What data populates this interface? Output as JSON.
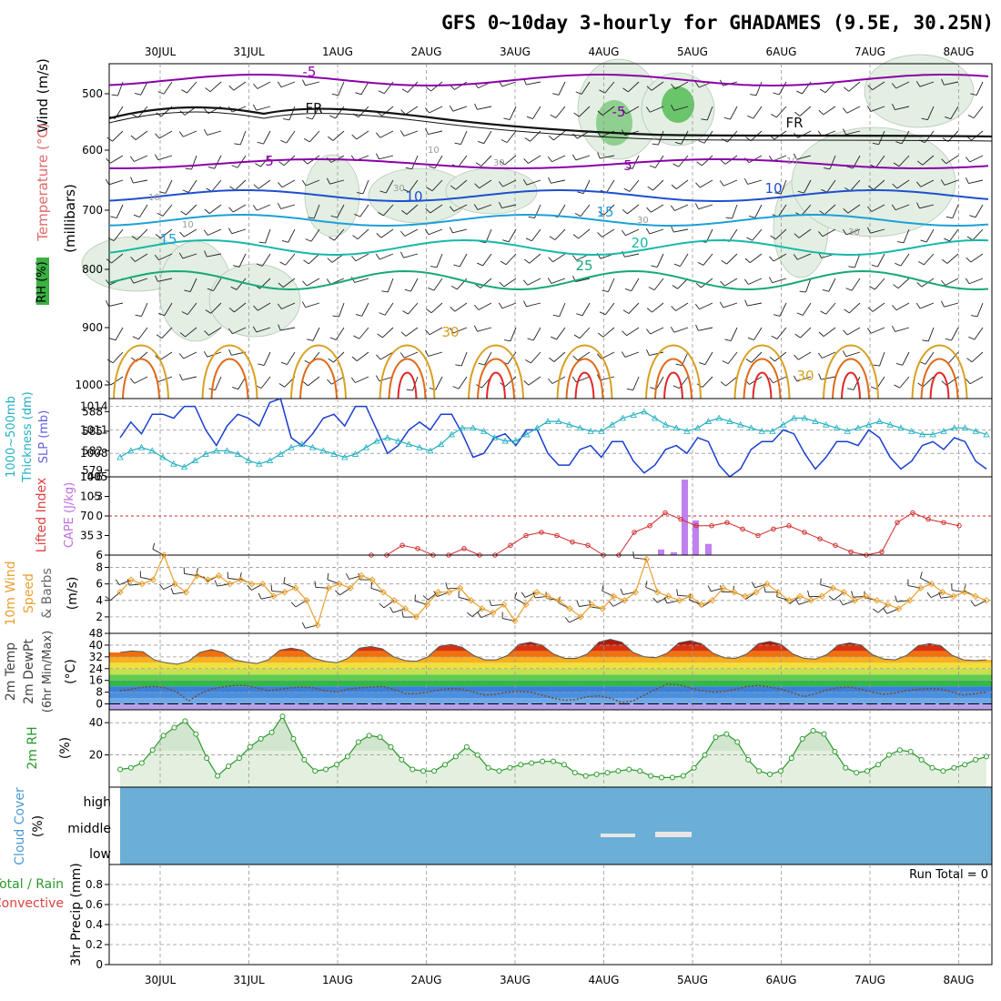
{
  "title": "GFS 0~10day 3-hourly for GHADAMES (9.5E, 30.25N)",
  "date_labels": [
    "30JUL",
    "31JUL",
    "1AUG",
    "2AUG",
    "3AUG",
    "4AUG",
    "5AUG",
    "6AUG",
    "7AUG",
    "8AUG"
  ],
  "colors": {
    "rh_green": "#3cb043",
    "temp_purple": "#8b00a8",
    "temp_blue": "#1f4fd0",
    "temp_cyan": "#1ea0d8",
    "temp_teal": "#17b8a8",
    "temp_green": "#16a878",
    "temp_gold": "#d8a020",
    "temp_orange": "#e06a18",
    "temp_red": "#e02828",
    "slp_blue": "#1a3fd0",
    "thick_cyan": "#22b0c0",
    "li_red": "#d02828",
    "cape_purple": "#c080f0",
    "wind_orange": "#e8a030",
    "cloud_blue": "#6baed6",
    "rh2m_green": "#2a9a2a"
  },
  "panels": {
    "upper": {
      "ylabel_wind": "Wind (m/s)",
      "ylabel_temp": "Temperature (°C)",
      "ylabel_rh": "RH (%)",
      "ylabel_units": "(millibars)",
      "yticks": [
        "500",
        "600",
        "700",
        "800",
        "900",
        "1000"
      ],
      "contour_labels": [
        "-5",
        "-5",
        "5",
        "5",
        "10",
        "10",
        "15",
        "15",
        "20",
        "25",
        "30",
        "30",
        "FR",
        "FR"
      ],
      "rh_labels": [
        "10",
        "10",
        "30",
        "30",
        "30",
        "30",
        "10",
        "10"
      ]
    },
    "slp": {
      "ylabel_thick": "Thickness (dm)",
      "ylabel_thick_top": "1000~500mb",
      "ylabel_slp": "SLP (mb)",
      "left_ticks": [
        "588",
        "585",
        "582",
        "579"
      ],
      "right_ticks": [
        "1014",
        "1011",
        "1008",
        "1005"
      ]
    },
    "cape": {
      "ylabel_li": "Lifted Index",
      "ylabel_cape": "CAPE (J/kg)",
      "li_ticks": [
        "-6",
        "-3",
        "0",
        "3",
        "6"
      ],
      "cape_ticks": [
        "140",
        "105",
        "70",
        "35"
      ]
    },
    "wind10": {
      "ylabel_a": "10m Wind",
      "ylabel_b": "Speed",
      "ylabel_c": "& Barbs",
      "ylabel_units": "(m/s)",
      "yticks": [
        "8",
        "6",
        "4",
        "2"
      ]
    },
    "temp2m": {
      "ylabel_a": "2m Temp",
      "ylabel_b": "2m DewPt",
      "ylabel_c": "(6hr Min/Max)",
      "ylabel_units": "(°C)",
      "yticks": [
        "48",
        "40",
        "32",
        "24",
        "16",
        "8",
        "0"
      ]
    },
    "rh2m": {
      "ylabel": "2m RH",
      "ylabel_units": "(%)",
      "yticks": [
        "40",
        "20"
      ]
    },
    "cloud": {
      "ylabel": "Cloud Cover",
      "ylabel_units": "(%)",
      "levels": [
        "high",
        "middle",
        "low"
      ]
    },
    "precip": {
      "ylabel_total": "Total / Rain",
      "ylabel_conv": "Convective",
      "ylabel_units": "3hr Precip (mm)",
      "run_total": "Run Total = 0",
      "yticks": [
        "0.8",
        "0.6",
        "0.4",
        "0.2",
        "0"
      ]
    }
  },
  "chart_data": [
    {
      "type": "line",
      "title": "",
      "xlabel": "",
      "ylabel": "SLP (mb)",
      "series": [
        {
          "name": "SLP (mb)",
          "values": [
            1010.0,
            1012.0,
            1010.5,
            1013.0,
            1013.0,
            1012.5,
            1014.0,
            1014.0,
            1011.0,
            1009.0,
            1011.5,
            1013.0,
            1012.5,
            1011.5,
            1014.5,
            1015.0,
            1010.0,
            1009.0,
            1010.5,
            1012.5,
            1013.0,
            1011.5,
            1014.0,
            1014.0,
            1011.0,
            1008.0,
            1009.0,
            1011.0,
            1012.0,
            1011.0,
            1013.0,
            1013.0,
            1010.5,
            1007.5,
            1008.0,
            1010.0,
            1010.5,
            1009.0,
            1011.0,
            1011.0,
            1008.0,
            1006.5,
            1006.5,
            1008.5,
            1009.0,
            1007.5,
            1009.5,
            1009.5,
            1007.0,
            1005.5,
            1006.5,
            1008.5,
            1009.0,
            1008.0,
            1010.0,
            1009.5,
            1006.5,
            1005.0,
            1006.0,
            1008.5,
            1009.5,
            1009.5,
            1011.0,
            1010.5,
            1008.0,
            1006.0,
            1007.5,
            1009.5,
            1009.5,
            1009.0,
            1011.0,
            1010.0,
            1007.5,
            1006.0,
            1007.0,
            1009.0,
            1009.5,
            1008.5,
            1010.0,
            1009.5,
            1007.0,
            1006.0
          ]
        },
        {
          "name": "Thickness (dm)",
          "values": [
            581.0,
            582.0,
            582.5,
            582.0,
            581.0,
            580.0,
            579.5,
            580.5,
            581.5,
            582.0,
            582.0,
            581.5,
            580.5,
            580.0,
            580.5,
            581.5,
            582.5,
            583.0,
            582.5,
            582.0,
            581.5,
            581.0,
            581.5,
            582.5,
            583.5,
            584.0,
            583.5,
            583.0,
            582.5,
            582.0,
            583.0,
            584.5,
            585.5,
            585.5,
            585.0,
            584.0,
            583.5,
            583.5,
            584.5,
            585.5,
            586.5,
            586.5,
            586.0,
            585.5,
            585.0,
            585.0,
            586.0,
            587.0,
            587.5,
            588.0,
            587.0,
            586.0,
            585.5,
            585.0,
            585.5,
            586.5,
            587.0,
            586.5,
            586.0,
            585.5,
            585.0,
            585.0,
            586.0,
            587.0,
            587.0,
            586.5,
            586.0,
            585.5,
            585.0,
            585.5,
            586.0,
            586.5,
            586.0,
            585.5,
            585.0,
            584.5,
            584.5,
            585.0,
            585.5,
            585.5,
            585.0,
            584.5
          ]
        }
      ],
      "y2label": "Thickness (dm)",
      "ylim": [
        1005,
        1015
      ],
      "y2lim": [
        578,
        590
      ]
    },
    {
      "type": "bar",
      "title": "",
      "ylabel": "CAPE (J/kg)",
      "categories": [
        "4AUG 15Z",
        "4AUG 18Z",
        "4AUG 21Z",
        "5AUG 00Z",
        "5AUG 03Z"
      ],
      "values": [
        10,
        5,
        135,
        62,
        20
      ],
      "ylim": [
        0,
        140
      ],
      "series_line": {
        "name": "Lifted Index",
        "values": [
          6,
          6,
          4.5,
          5.0,
          6,
          6,
          5.0,
          6,
          6,
          4.5,
          3.0,
          2.5,
          3.0,
          4.0,
          4.5,
          6,
          6,
          2.5,
          1.5,
          -0.5,
          0.5,
          1.5,
          1.5,
          1.0,
          2.0,
          3.0,
          2.0,
          1.5,
          2.5,
          3.5,
          4.5,
          5.5,
          6,
          5.5,
          1.0,
          -0.5,
          0.5,
          1.0,
          1.5
        ]
      }
    },
    {
      "type": "line",
      "title": "",
      "ylabel": "Speed (m/s)",
      "series": [
        {
          "name": "10m Wind Speed",
          "values": [
            5.0,
            6.5,
            6.0,
            6.5,
            9.5,
            6.0,
            5.0,
            7.0,
            6.5,
            7.0,
            6.0,
            6.5,
            6.0,
            6.0,
            4.5,
            5.0,
            5.5,
            4.0,
            1.0,
            5.5,
            6.0,
            5.5,
            7.0,
            6.5,
            5.0,
            4.0,
            3.0,
            2.0,
            3.5,
            5.0,
            5.0,
            5.5,
            4.0,
            3.0,
            2.5,
            3.5,
            1.5,
            3.5,
            5.0,
            4.5,
            4.0,
            3.0,
            2.0,
            3.5,
            3.0,
            4.5,
            4.0,
            5.0,
            9.0,
            5.0,
            4.5,
            4.0,
            4.5,
            3.5,
            4.0,
            5.5,
            5.0,
            4.5,
            5.0,
            6.0,
            5.0,
            4.0,
            4.5,
            4.0,
            4.5,
            5.5,
            5.0,
            4.0,
            4.5,
            4.0,
            3.5,
            3.0,
            4.0,
            5.5,
            6.0,
            5.0,
            4.5,
            5.0,
            4.5,
            4.0
          ]
        }
      ],
      "ylim": [
        0,
        9
      ]
    },
    {
      "type": "area",
      "title": "",
      "ylabel": "(°C)",
      "series": [
        {
          "name": "2m Temp",
          "values": [
            35.0,
            36.0,
            35.5,
            30.0,
            28.0,
            27.0,
            29.0,
            35.0,
            37.0,
            35.0,
            30.0,
            28.5,
            27.5,
            30.0,
            36.5,
            38.0,
            36.5,
            31.0,
            29.0,
            28.0,
            31.0,
            38.0,
            39.0,
            37.5,
            32.0,
            29.5,
            29.0,
            32.0,
            39.0,
            40.5,
            38.5,
            33.0,
            30.0,
            30.0,
            33.0,
            40.5,
            42.0,
            40.0,
            34.0,
            31.0,
            31.0,
            34.0,
            42.0,
            44.0,
            42.0,
            35.0,
            32.0,
            31.5,
            34.5,
            41.5,
            43.0,
            41.0,
            34.5,
            31.5,
            31.0,
            34.0,
            41.0,
            42.5,
            40.5,
            34.0,
            31.0,
            30.5,
            33.5,
            40.0,
            41.5,
            40.0,
            33.5,
            30.5,
            30.0,
            33.0,
            39.5,
            41.0,
            39.5,
            33.0,
            30.0,
            29.5,
            30.0
          ]
        },
        {
          "name": "2m DewPt",
          "values": [
            9.0,
            10.0,
            11.5,
            12.0,
            11.0,
            8.0,
            2.0,
            7.0,
            10.0,
            11.5,
            12.5,
            12.5,
            11.0,
            9.0,
            10.0,
            11.0,
            11.5,
            11.0,
            9.0,
            8.0,
            10.0,
            11.0,
            11.5,
            12.0,
            10.0,
            7.0,
            7.0,
            8.0,
            9.5,
            10.5,
            10.0,
            8.0,
            6.0,
            6.5,
            8.0,
            8.5,
            8.0,
            6.0,
            4.0,
            2.5,
            3.0,
            5.0,
            5.5,
            4.0,
            1.0,
            2.0,
            6.0,
            10.0,
            13.5,
            13.0,
            11.0,
            9.0,
            8.0,
            8.5,
            10.0,
            12.0,
            12.5,
            11.5,
            10.0,
            7.5,
            5.0,
            7.0,
            9.5,
            11.0,
            11.5,
            10.0,
            8.0,
            6.5,
            7.5,
            9.0,
            10.0,
            10.5,
            10.0,
            8.0,
            6.0,
            7.0,
            8.0
          ]
        }
      ],
      "ylim": [
        -4,
        48
      ]
    },
    {
      "type": "area",
      "title": "",
      "ylabel": "2m RH (%)",
      "series": [
        {
          "name": "2m RH",
          "values": [
            11,
            12,
            15,
            23,
            32,
            37,
            41,
            33,
            18,
            7,
            13,
            18,
            25,
            30,
            34,
            44,
            30,
            17,
            10,
            11,
            14,
            19,
            28,
            32,
            31,
            25,
            17,
            11,
            10,
            10,
            14,
            19,
            25,
            20,
            12,
            10,
            12,
            14,
            15,
            16,
            16,
            14,
            9,
            7,
            8,
            9,
            10,
            11,
            10,
            7,
            6,
            6,
            7,
            12,
            20,
            31,
            33,
            28,
            17,
            10,
            8,
            10,
            18,
            30,
            35,
            33,
            22,
            12,
            9,
            10,
            14,
            20,
            23,
            22,
            17,
            12,
            10,
            12,
            14,
            17,
            19
          ]
        }
      ],
      "ylim": [
        0,
        48
      ]
    },
    {
      "type": "bar",
      "title": "",
      "ylabel": "3hr Precip (mm)",
      "categories": [],
      "values": [],
      "ylim": [
        0,
        1
      ]
    }
  ]
}
